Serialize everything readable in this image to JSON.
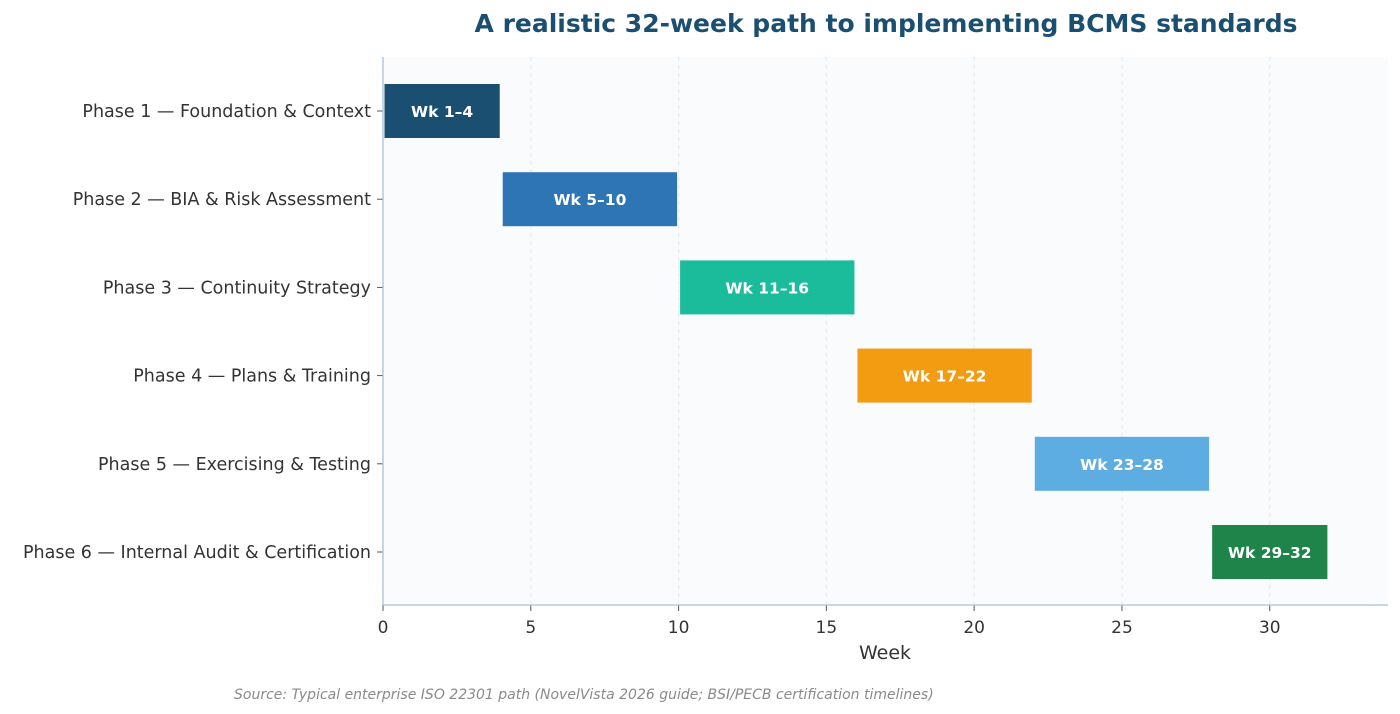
{
  "chart_data": {
    "type": "bar",
    "orientation": "horizontal-gantt",
    "title": "A realistic 32-week path to implementing BCMS standards",
    "xlabel": "Week",
    "ylabel": "",
    "xlim": [
      0,
      34
    ],
    "xticks": [
      0,
      5,
      10,
      15,
      20,
      25,
      30
    ],
    "grid": "vertical-dashed",
    "background": "#f9fbfd",
    "categories": [
      "Phase 1 — Foundation & Context",
      "Phase 2 — BIA & Risk Assessment",
      "Phase 3 — Continuity Strategy",
      "Phase 4 — Plans & Training",
      "Phase 5 — Exercising & Testing",
      "Phase 6 — Internal Audit & Certification"
    ],
    "bars": [
      {
        "start": 0,
        "end": 4,
        "label": "Wk 1–4",
        "color": "#1b4f72"
      },
      {
        "start": 4,
        "end": 10,
        "label": "Wk 5–10",
        "color": "#2e75b6"
      },
      {
        "start": 10,
        "end": 16,
        "label": "Wk 11–16",
        "color": "#1abc9c"
      },
      {
        "start": 16,
        "end": 22,
        "label": "Wk 17–22",
        "color": "#f39c12"
      },
      {
        "start": 22,
        "end": 28,
        "label": "Wk 23–28",
        "color": "#5dade2"
      },
      {
        "start": 28,
        "end": 32,
        "label": "Wk 29–32",
        "color": "#1e8449"
      }
    ],
    "source": "Source: Typical enterprise ISO 22301 path (NovelVista 2026 guide; BSI/PECB certification timelines)"
  }
}
